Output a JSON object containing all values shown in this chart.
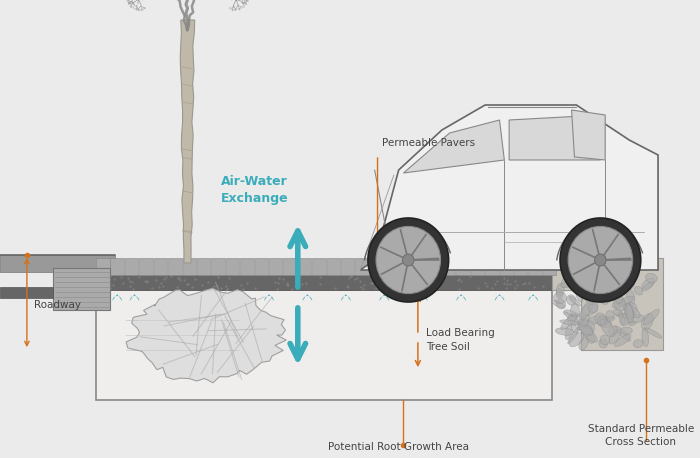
{
  "bg_color": "#ebebeb",
  "white": "#f5f5f5",
  "orange": "#d4711a",
  "teal": "#3aacba",
  "dark": "#333333",
  "labels": {
    "permeable_pavers": "Permeable Pavers",
    "air_water": "Air-Water\nExchange",
    "roadway": "Roadway",
    "load_bearing": "Load Bearing\nTree Soil",
    "potential_root": "Potential Root Growth Area",
    "standard_permeable": "Standard Permeable\nCross Section"
  }
}
